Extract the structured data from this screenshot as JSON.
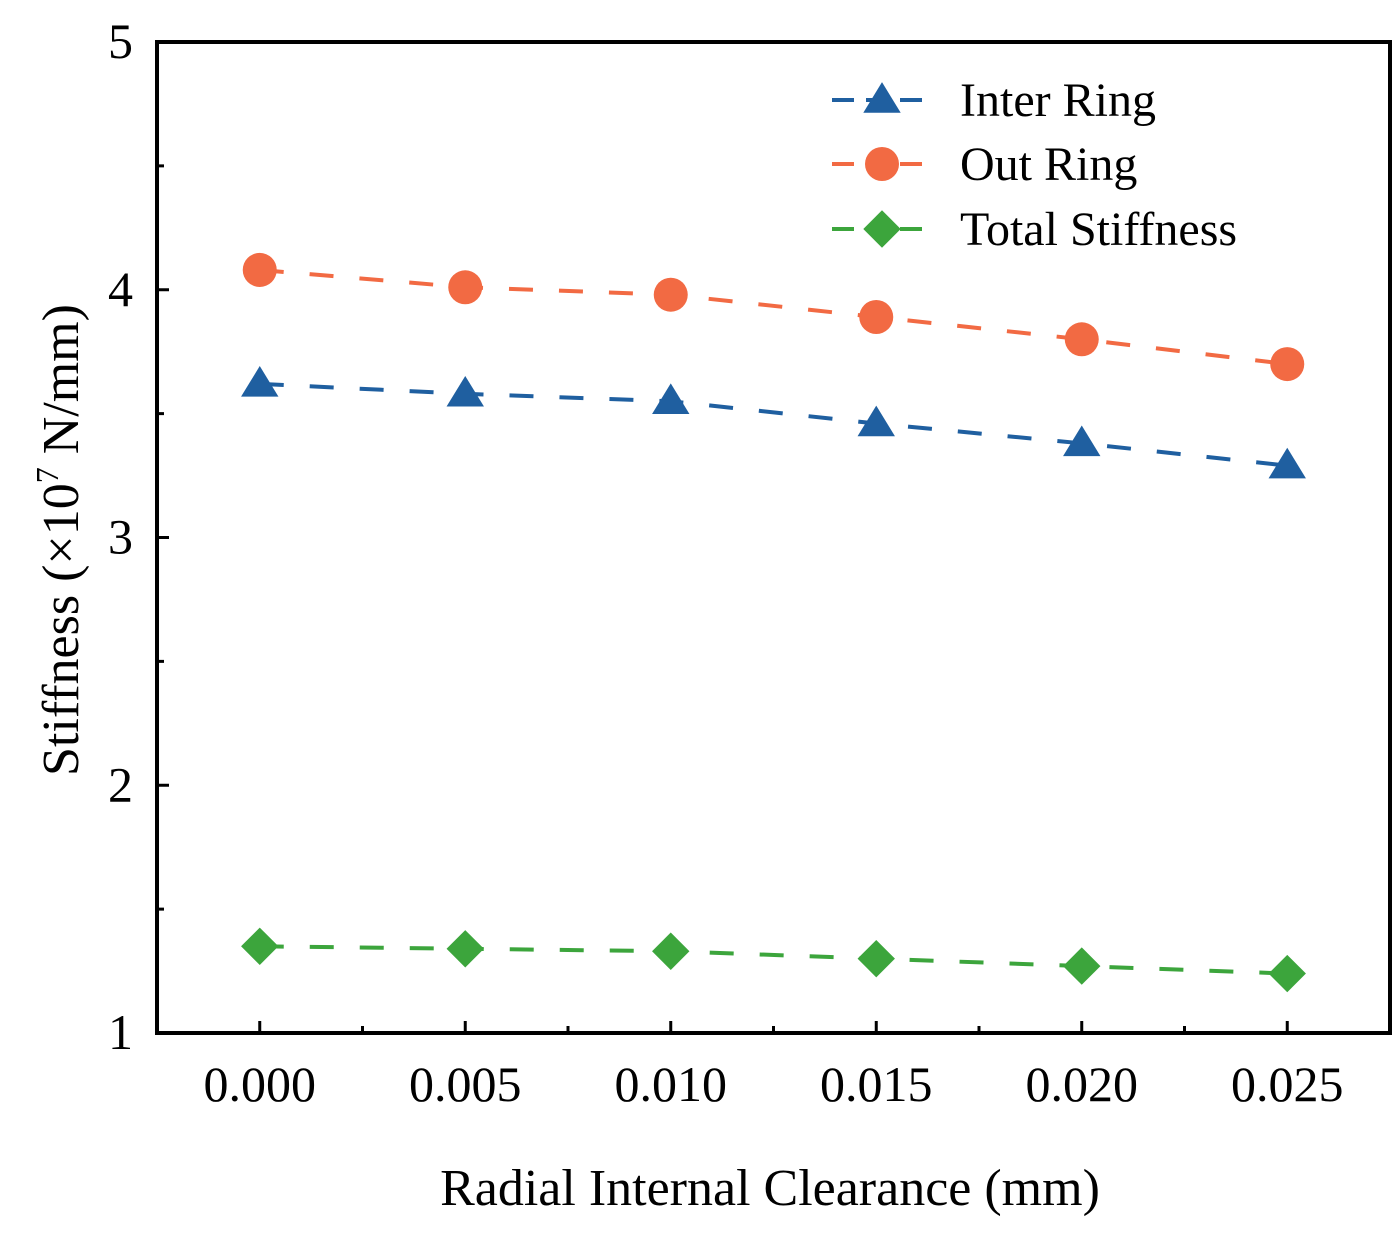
{
  "chart_data": {
    "type": "line",
    "title": "",
    "xlabel": "Radial Internal Clearance (mm)",
    "ylabel": {
      "prefix": "Stiffness (×10",
      "exponent": "7",
      "suffix": " N/mm)"
    },
    "x": [
      0.0,
      0.005,
      0.01,
      0.015,
      0.02,
      0.025
    ],
    "x_tick_labels": [
      "0.000",
      "0.005",
      "0.010",
      "0.015",
      "0.020",
      "0.025"
    ],
    "xlim": [
      -0.0025,
      0.0275
    ],
    "ylim": [
      1,
      5
    ],
    "y_ticks": [
      1,
      2,
      3,
      4,
      5
    ],
    "y_tick_labels": [
      "1",
      "2",
      "3",
      "4",
      "5"
    ],
    "legend_position": "top-right",
    "series": [
      {
        "name": "Inter Ring",
        "marker": "triangle",
        "color": "#1f5fa0",
        "values": [
          3.62,
          3.58,
          3.55,
          3.46,
          3.38,
          3.29
        ]
      },
      {
        "name": "Out Ring",
        "marker": "circle",
        "color": "#f26a43",
        "values": [
          4.08,
          4.01,
          3.98,
          3.89,
          3.8,
          3.7
        ]
      },
      {
        "name": "Total Stiffness",
        "marker": "diamond",
        "color": "#3ca53c",
        "values": [
          1.35,
          1.34,
          1.33,
          1.3,
          1.27,
          1.24
        ]
      }
    ]
  }
}
